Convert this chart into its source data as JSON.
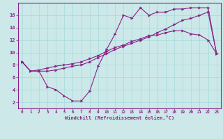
{
  "xlabel": "Windchill (Refroidissement éolien,°C)",
  "bg_color": "#cce8e8",
  "line_color": "#882288",
  "grid_color": "#aadddd",
  "line1_x": [
    0,
    1,
    2,
    3,
    4,
    5,
    6,
    7,
    8,
    9,
    10,
    11,
    12,
    13,
    14,
    15,
    16,
    17,
    18,
    19,
    20,
    21,
    22,
    23
  ],
  "line1_y": [
    8.5,
    7.0,
    7.0,
    4.5,
    4.0,
    3.0,
    2.2,
    2.2,
    3.8,
    7.8,
    10.5,
    13.0,
    16.0,
    15.5,
    17.2,
    16.0,
    16.5,
    16.5,
    17.0,
    17.0,
    17.2,
    17.2,
    17.2,
    9.8
  ],
  "line2_x": [
    0,
    1,
    2,
    3,
    4,
    5,
    6,
    7,
    8,
    9,
    10,
    11,
    12,
    13,
    14,
    15,
    16,
    17,
    18,
    19,
    20,
    21,
    22,
    23
  ],
  "line2_y": [
    8.5,
    7.0,
    7.2,
    7.5,
    7.8,
    8.0,
    8.2,
    8.5,
    9.0,
    9.5,
    10.2,
    10.8,
    11.2,
    11.8,
    12.2,
    12.7,
    12.8,
    13.2,
    13.5,
    13.5,
    13.0,
    12.8,
    12.0,
    9.8
  ],
  "line3_x": [
    0,
    1,
    2,
    3,
    4,
    5,
    6,
    7,
    8,
    9,
    10,
    11,
    12,
    13,
    14,
    15,
    16,
    17,
    18,
    19,
    20,
    21,
    22,
    23
  ],
  "line3_y": [
    8.5,
    7.0,
    7.0,
    7.0,
    7.2,
    7.5,
    7.8,
    8.0,
    8.5,
    9.2,
    9.8,
    10.5,
    11.0,
    11.5,
    12.0,
    12.5,
    13.2,
    13.8,
    14.5,
    15.2,
    15.5,
    16.0,
    16.5,
    9.8
  ],
  "xlim": [
    -0.5,
    23.5
  ],
  "ylim": [
    1.0,
    18.0
  ],
  "yticks": [
    2,
    4,
    6,
    8,
    10,
    12,
    14,
    16
  ],
  "xticks": [
    0,
    1,
    2,
    3,
    4,
    5,
    6,
    7,
    8,
    9,
    10,
    11,
    12,
    13,
    14,
    15,
    16,
    17,
    18,
    19,
    20,
    21,
    22,
    23
  ],
  "markersize": 3.0,
  "linewidth": 0.8
}
